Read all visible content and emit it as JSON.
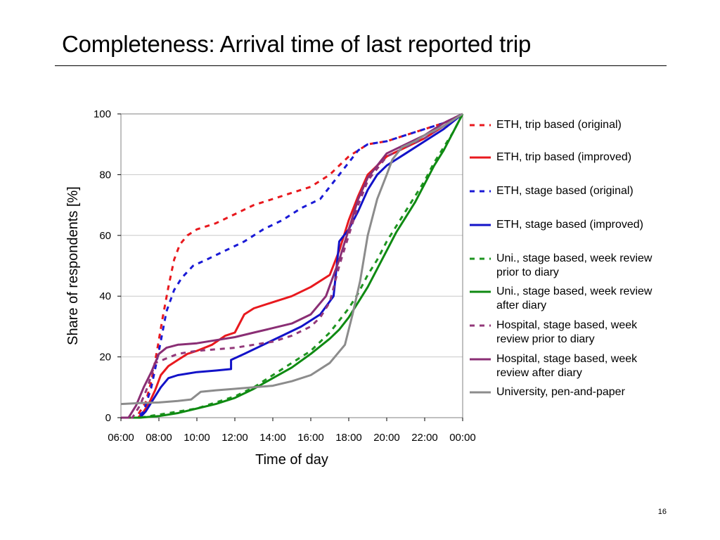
{
  "slide": {
    "title": "Completeness: Arrival time of last reported trip",
    "page_number": "16"
  },
  "chart_data": {
    "type": "line",
    "title": "",
    "xlabel": "Time of day",
    "ylabel": "Share of respondents [%]",
    "x_unit": "hours since 06:00",
    "xlim": [
      0,
      18
    ],
    "ylim": [
      0,
      100
    ],
    "xticks": [
      "06:00",
      "08:00",
      "10:00",
      "12:00",
      "14:00",
      "16:00",
      "18:00",
      "20:00",
      "22:00",
      "00:00"
    ],
    "yticks": [
      "0",
      "20",
      "40",
      "60",
      "80",
      "100"
    ],
    "grid": "horizontal",
    "legend": "right",
    "series": [
      {
        "name": "ETH, trip based (original)",
        "color": "#e8191e",
        "dash": "dashed",
        "points": [
          [
            0,
            0
          ],
          [
            0.8,
            0
          ],
          [
            1,
            2
          ],
          [
            1.3,
            5
          ],
          [
            1.6,
            12
          ],
          [
            1.9,
            22
          ],
          [
            2.2,
            33
          ],
          [
            2.5,
            43
          ],
          [
            2.8,
            52
          ],
          [
            3.1,
            57
          ],
          [
            3.5,
            60
          ],
          [
            4,
            62
          ],
          [
            5,
            64
          ],
          [
            6,
            67
          ],
          [
            7,
            70
          ],
          [
            8,
            72
          ],
          [
            9,
            74
          ],
          [
            10,
            76
          ],
          [
            11,
            80
          ],
          [
            11.5,
            83
          ],
          [
            12,
            86
          ],
          [
            12.5,
            88
          ],
          [
            13,
            90
          ],
          [
            14,
            91
          ],
          [
            15,
            93
          ],
          [
            16,
            95
          ],
          [
            17,
            97
          ],
          [
            18,
            100
          ]
        ]
      },
      {
        "name": "ETH, trip based (improved)",
        "color": "#e8191e",
        "dash": "solid",
        "points": [
          [
            0,
            0
          ],
          [
            0.9,
            0
          ],
          [
            1.2,
            2
          ],
          [
            1.5,
            5
          ],
          [
            1.8,
            9
          ],
          [
            2.1,
            14
          ],
          [
            2.5,
            17
          ],
          [
            3,
            19
          ],
          [
            3.5,
            21
          ],
          [
            4,
            22
          ],
          [
            4.8,
            24
          ],
          [
            5.5,
            27
          ],
          [
            6,
            28
          ],
          [
            6.5,
            34
          ],
          [
            7,
            36
          ],
          [
            8,
            38
          ],
          [
            9,
            40
          ],
          [
            10,
            43
          ],
          [
            11,
            47
          ],
          [
            11.5,
            55
          ],
          [
            12,
            65
          ],
          [
            12.5,
            73
          ],
          [
            13,
            80
          ],
          [
            14,
            86
          ],
          [
            15,
            89
          ],
          [
            16,
            92
          ],
          [
            17,
            96
          ],
          [
            18,
            100
          ]
        ]
      },
      {
        "name": "ETH, stage based (original)",
        "color": "#1a1ad6",
        "dash": "dashed",
        "points": [
          [
            0,
            0
          ],
          [
            0.8,
            0
          ],
          [
            1.2,
            2
          ],
          [
            1.6,
            10
          ],
          [
            2,
            22
          ],
          [
            2.4,
            35
          ],
          [
            2.8,
            42
          ],
          [
            3.2,
            46
          ],
          [
            3.8,
            50
          ],
          [
            4.5,
            52
          ],
          [
            5.5,
            55
          ],
          [
            6.5,
            58
          ],
          [
            7.5,
            62
          ],
          [
            8.5,
            65
          ],
          [
            9.5,
            69
          ],
          [
            10.5,
            72
          ],
          [
            11,
            76
          ],
          [
            11.5,
            80
          ],
          [
            12,
            84
          ],
          [
            12.5,
            88
          ],
          [
            13,
            90
          ],
          [
            14,
            91
          ],
          [
            15,
            93
          ],
          [
            16,
            95
          ],
          [
            17,
            97
          ],
          [
            18,
            100
          ]
        ]
      },
      {
        "name": "ETH, stage based (improved)",
        "color": "#1212c8",
        "dash": "solid",
        "points": [
          [
            0,
            0
          ],
          [
            1,
            0
          ],
          [
            1.3,
            2
          ],
          [
            1.7,
            6
          ],
          [
            2.1,
            10
          ],
          [
            2.5,
            13
          ],
          [
            3,
            14
          ],
          [
            3.5,
            14.5
          ],
          [
            4,
            15
          ],
          [
            5,
            15.5
          ],
          [
            5.8,
            16
          ],
          [
            5.8,
            19
          ],
          [
            6.5,
            21
          ],
          [
            7.5,
            24
          ],
          [
            8.5,
            27
          ],
          [
            9.5,
            30
          ],
          [
            10.5,
            34
          ],
          [
            11.2,
            40
          ],
          [
            11.5,
            58
          ],
          [
            12,
            62
          ],
          [
            12.5,
            68
          ],
          [
            13,
            75
          ],
          [
            13.5,
            80
          ],
          [
            14,
            83
          ],
          [
            15,
            87
          ],
          [
            16,
            91
          ],
          [
            17,
            95
          ],
          [
            18,
            100
          ]
        ]
      },
      {
        "name": "Uni., stage based, week review prior to diary",
        "color": "#1e9420",
        "dash": "dashed",
        "points": [
          [
            0,
            0
          ],
          [
            1,
            0
          ],
          [
            2,
            1
          ],
          [
            3,
            2
          ],
          [
            4,
            3
          ],
          [
            5,
            5
          ],
          [
            6,
            7
          ],
          [
            7,
            10
          ],
          [
            8,
            14
          ],
          [
            9,
            18
          ],
          [
            10,
            22
          ],
          [
            11,
            28
          ],
          [
            11.5,
            32
          ],
          [
            12,
            36
          ],
          [
            12.5,
            41
          ],
          [
            13,
            47
          ],
          [
            13.5,
            52
          ],
          [
            14,
            58
          ],
          [
            14.5,
            63
          ],
          [
            15,
            68
          ],
          [
            15.5,
            73
          ],
          [
            16,
            78
          ],
          [
            16.5,
            84
          ],
          [
            17,
            89
          ],
          [
            17.5,
            94
          ],
          [
            18,
            100
          ]
        ]
      },
      {
        "name": "Uni., stage based, week review after diary",
        "color": "#0f8a12",
        "dash": "solid",
        "points": [
          [
            0,
            0
          ],
          [
            1,
            0
          ],
          [
            2,
            0.5
          ],
          [
            3,
            1.5
          ],
          [
            4,
            3
          ],
          [
            5,
            4.5
          ],
          [
            6,
            6.5
          ],
          [
            7,
            9.5
          ],
          [
            8,
            13
          ],
          [
            9,
            16.5
          ],
          [
            10,
            21
          ],
          [
            11,
            26
          ],
          [
            11.5,
            29
          ],
          [
            12,
            33
          ],
          [
            12.5,
            38
          ],
          [
            13,
            43
          ],
          [
            13.5,
            49
          ],
          [
            14,
            55
          ],
          [
            14.5,
            61
          ],
          [
            15,
            66
          ],
          [
            15.5,
            71
          ],
          [
            16,
            77
          ],
          [
            16.5,
            83
          ],
          [
            17,
            88
          ],
          [
            17.5,
            94
          ],
          [
            18,
            100
          ]
        ]
      },
      {
        "name": "Hospital, stage based, week review prior to diary",
        "color": "#93387a",
        "dash": "dashed",
        "points": [
          [
            0,
            0
          ],
          [
            0.6,
            0
          ],
          [
            1,
            4
          ],
          [
            1.4,
            10
          ],
          [
            1.8,
            18
          ],
          [
            2.2,
            19
          ],
          [
            2.6,
            20
          ],
          [
            3,
            21
          ],
          [
            3.5,
            21.5
          ],
          [
            4,
            22
          ],
          [
            5,
            22.5
          ],
          [
            6,
            23
          ],
          [
            7,
            24
          ],
          [
            8,
            25
          ],
          [
            9,
            27
          ],
          [
            10,
            30
          ],
          [
            10.5,
            33
          ],
          [
            11,
            38
          ],
          [
            11.5,
            50
          ],
          [
            12,
            60
          ],
          [
            12.5,
            70
          ],
          [
            13,
            78
          ],
          [
            13.5,
            82
          ],
          [
            14,
            86
          ],
          [
            15,
            89
          ],
          [
            16,
            92
          ],
          [
            17,
            96
          ],
          [
            18,
            100
          ]
        ]
      },
      {
        "name": "Hospital, stage based, week review after diary",
        "color": "#8a2e74",
        "dash": "solid",
        "points": [
          [
            0,
            0
          ],
          [
            0.4,
            0
          ],
          [
            0.8,
            4
          ],
          [
            1.2,
            10
          ],
          [
            1.6,
            15
          ],
          [
            2,
            21
          ],
          [
            2.4,
            23
          ],
          [
            3,
            24
          ],
          [
            4,
            24.5
          ],
          [
            5,
            25.5
          ],
          [
            6,
            26.5
          ],
          [
            7,
            28
          ],
          [
            8,
            29.5
          ],
          [
            9,
            31
          ],
          [
            10,
            34
          ],
          [
            10.8,
            40
          ],
          [
            11.5,
            52
          ],
          [
            12,
            62
          ],
          [
            12.5,
            72
          ],
          [
            13,
            79
          ],
          [
            13.5,
            83
          ],
          [
            14,
            87
          ],
          [
            15,
            90
          ],
          [
            16,
            93
          ],
          [
            17,
            97
          ],
          [
            18,
            100
          ]
        ]
      },
      {
        "name": "University, pen-and-paper",
        "color": "#8c8c8c",
        "dash": "solid",
        "points": [
          [
            0,
            4.5
          ],
          [
            1,
            4.8
          ],
          [
            2,
            5
          ],
          [
            3,
            5.5
          ],
          [
            3.7,
            6
          ],
          [
            4.2,
            8.5
          ],
          [
            5,
            9
          ],
          [
            6,
            9.5
          ],
          [
            7,
            10
          ],
          [
            8,
            10.5
          ],
          [
            9,
            12
          ],
          [
            10,
            14
          ],
          [
            11,
            18
          ],
          [
            11.8,
            24
          ],
          [
            12.2,
            34
          ],
          [
            12.6,
            45
          ],
          [
            13,
            60
          ],
          [
            13.5,
            72
          ],
          [
            14,
            80
          ],
          [
            14.3,
            85
          ],
          [
            14.8,
            89
          ],
          [
            15.5,
            91
          ],
          [
            16,
            93
          ],
          [
            17,
            96
          ],
          [
            18,
            100
          ]
        ]
      }
    ]
  }
}
